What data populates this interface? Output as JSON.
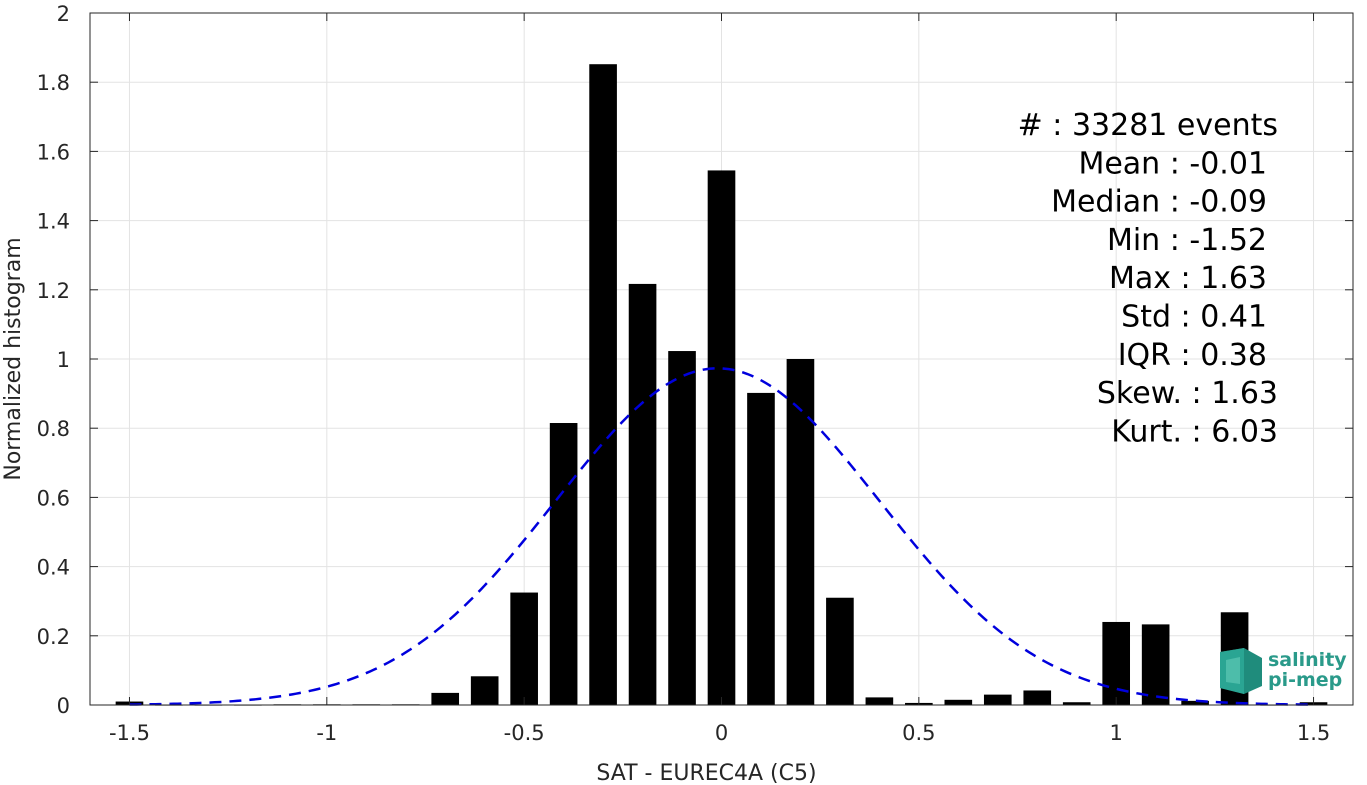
{
  "chart_data": {
    "type": "bar",
    "xlabel": "SAT - EUREC4A (C5)",
    "ylabel": "Normalized histogram",
    "xlim": [
      -1.6,
      1.6
    ],
    "ylim": [
      0,
      2
    ],
    "grid": true,
    "xticks": [
      -1.5,
      -1,
      -0.5,
      0,
      0.5,
      1,
      1.5
    ],
    "xtick_labels": [
      "-1.5",
      "-1",
      "-0.5",
      "0",
      "0.5",
      "1",
      "1.5"
    ],
    "yticks": [
      0,
      0.2,
      0.4,
      0.6,
      0.8,
      1,
      1.2,
      1.4,
      1.6,
      1.8,
      2
    ],
    "ytick_labels": [
      "0",
      "0.2",
      "0.4",
      "0.6",
      "0.8",
      "1",
      "1.2",
      "1.4",
      "1.6",
      "1.8",
      "2"
    ],
    "bar_color": "#000000",
    "bars": {
      "x": [
        -1.5,
        -1.4,
        -1.3,
        -1.2,
        -1.1,
        -1.0,
        -0.9,
        -0.8,
        -0.7,
        -0.6,
        -0.5,
        -0.4,
        -0.3,
        -0.2,
        -0.1,
        0.0,
        0.1,
        0.2,
        0.3,
        0.4,
        0.5,
        0.6,
        0.7,
        0.8,
        0.9,
        1.0,
        1.1,
        1.2,
        1.3,
        1.4,
        1.5
      ],
      "values": [
        0.01,
        0.0,
        0.0,
        0.0,
        0.002,
        0.002,
        0.002,
        0.002,
        0.035,
        0.083,
        0.325,
        0.815,
        1.852,
        1.217,
        1.023,
        1.545,
        0.902,
        1.0,
        0.31,
        0.022,
        0.006,
        0.015,
        0.03,
        0.042,
        0.008,
        0.24,
        0.233,
        0.012,
        0.268,
        0.0,
        0.008
      ],
      "width": 0.07
    },
    "fit": {
      "type": "gaussian",
      "mean": -0.01,
      "std": 0.41,
      "color": "#0000dd",
      "style": "dashed"
    },
    "stats": [
      {
        "label": "#  : 33281 events"
      },
      {
        "label": "Mean : -0.01"
      },
      {
        "label": "Median : -0.09"
      },
      {
        "label": "Min : -1.52"
      },
      {
        "label": "Max : 1.63"
      },
      {
        "label": "Std : 0.41"
      },
      {
        "label": "IQR : 0.38"
      },
      {
        "label": "Skew. : 1.63"
      },
      {
        "label": "Kurt. : 6.03"
      }
    ]
  },
  "logo": {
    "line1": "salinity",
    "line2": "pi-mep",
    "color": "#2a9a8a"
  }
}
